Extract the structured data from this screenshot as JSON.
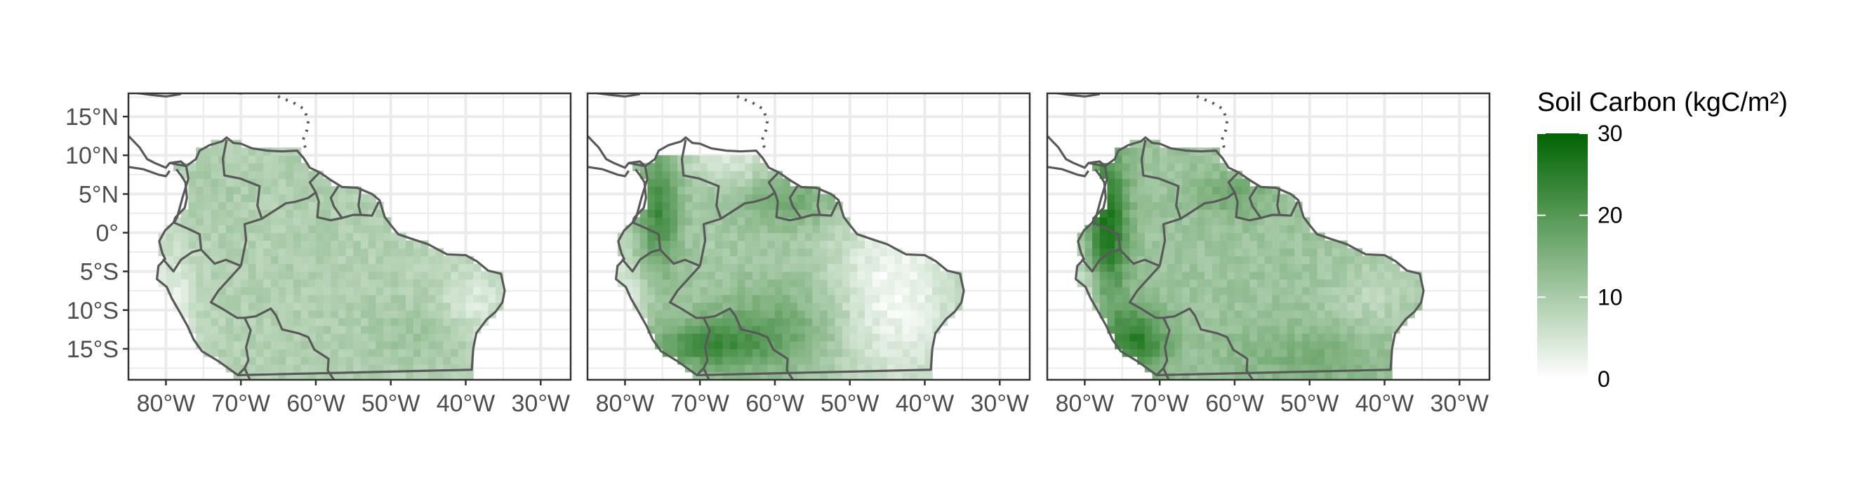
{
  "chart_data": {
    "type": "heatmap",
    "title": "",
    "xlabel": "",
    "ylabel": "",
    "panels": [
      {
        "name": ""
      },
      {
        "name": ""
      },
      {
        "name": ""
      }
    ],
    "x_range": [
      -85,
      -26
    ],
    "y_range": [
      -19,
      18
    ],
    "x_ticks": [
      -80,
      -70,
      -60,
      -50,
      -40,
      -30
    ],
    "x_tick_labels": [
      "80°W",
      "70°W",
      "60°W",
      "50°W",
      "40°W",
      "30°W"
    ],
    "y_ticks": [
      15,
      10,
      5,
      0,
      -5,
      -10,
      -15
    ],
    "y_tick_labels": [
      "15°N",
      "10°N",
      "5°N",
      "0°",
      "5°S",
      "10°S",
      "15°S"
    ],
    "grid": true,
    "legend": {
      "title": "Soil Carbon (kgC/m²)",
      "placement": "right",
      "range": [
        0,
        30
      ],
      "ticks": [
        0,
        10,
        20,
        30
      ],
      "tick_labels": [
        "0",
        "10",
        "20",
        "30"
      ],
      "color_low": "#ffffff",
      "color_high": "#006400"
    },
    "colors": {
      "grid": "#ebebeb",
      "border": "#333333",
      "outline": "#595959",
      "tick_text": "#4d4d4d"
    }
  }
}
